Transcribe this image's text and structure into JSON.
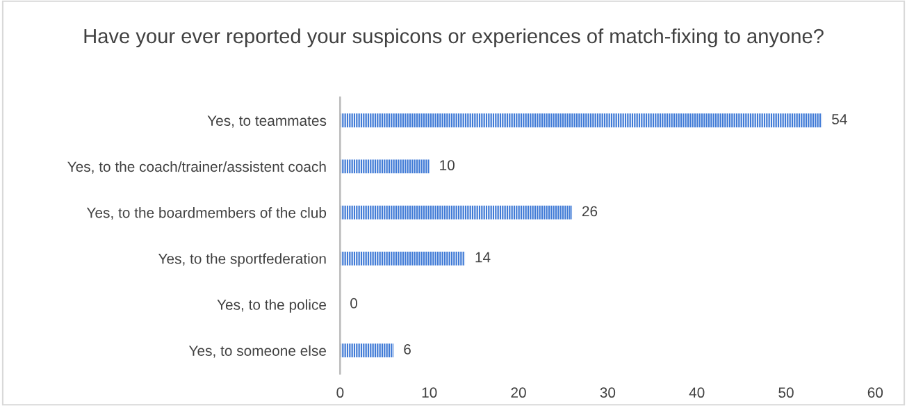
{
  "chart_data": {
    "type": "bar",
    "orientation": "horizontal",
    "title": "Have your ever reported your suspicons or experiences of match-fixing to anyone?",
    "categories": [
      "Yes, to teammates",
      "Yes, to the coach/trainer/assistent coach",
      "Yes, to the boardmembers of the club",
      "Yes, to the sportfederation",
      "Yes, to the police",
      "Yes, to someone else"
    ],
    "values": [
      54,
      10,
      26,
      14,
      0,
      6
    ],
    "color": "#3f7ad6",
    "xlim": [
      0,
      60
    ],
    "xticks": [
      0,
      10,
      20,
      30,
      40,
      50,
      60
    ],
    "grid": false,
    "data_labels": true
  }
}
